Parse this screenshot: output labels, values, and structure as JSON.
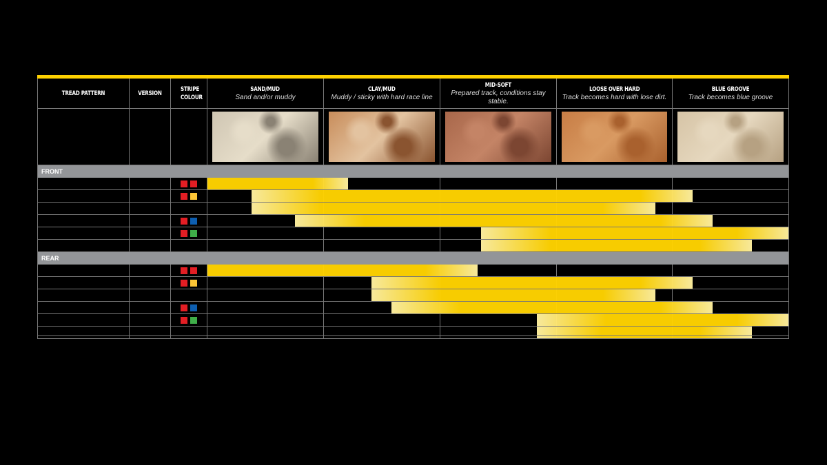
{
  "chart_data": {
    "type": "bar",
    "orientation": "horizontal-range",
    "columns": [
      {
        "label": "TREAD PATTERN"
      },
      {
        "label": "VERSION"
      },
      {
        "label": "STRIPE COLOUR"
      }
    ],
    "terrains": [
      {
        "name": "SAND/MUD",
        "desc": "Sand and/or muddy",
        "texture": [
          "#cfc6b3",
          "#8a8274",
          "#e6ddc9"
        ]
      },
      {
        "name": "CLAY/MUD",
        "desc": "Muddy / sticky with hard race line",
        "texture": [
          "#c88d5b",
          "#8a5430",
          "#e3c3a0"
        ]
      },
      {
        "name": "MID-SOFT",
        "desc": "Prepared track, conditions stay stable.",
        "texture": [
          "#a8674a",
          "#7c4632",
          "#c48466"
        ]
      },
      {
        "name": "LOOSE OVER HARD",
        "desc": "Track becomes hard with lose dirt.",
        "texture": [
          "#c77d45",
          "#a9612e",
          "#d99a62"
        ]
      },
      {
        "name": "BLUE GROOVE",
        "desc": "Track becomes blue groove",
        "texture": [
          "#d6c4a6",
          "#b6a182",
          "#e6d8bf"
        ]
      }
    ],
    "x_range": [
      0,
      5
    ],
    "bar_color": "#ffd200",
    "fade_color": "#fff0a0",
    "groups": [
      {
        "label": "FRONT",
        "rows": [
          {
            "stripes": [
              "#e31e24",
              "#e31e24"
            ],
            "start": 0,
            "end": 1.21,
            "fade_in": false,
            "fade_out": true
          },
          {
            "stripes": [
              "#e31e24",
              "#fcc536"
            ],
            "start": 0.38,
            "end": 4.17,
            "fade_in": true,
            "fade_out": true
          },
          {
            "stripes": [],
            "start": 0.38,
            "end": 3.85,
            "fade_in": true,
            "fade_out": true
          },
          {
            "stripes": [
              "#e31e24",
              "#0d5eb0"
            ],
            "start": 0.75,
            "end": 4.34,
            "fade_in": true,
            "fade_out": true
          },
          {
            "stripes": [
              "#e31e24",
              "#3fae49"
            ],
            "start": 2.35,
            "end": 5.0,
            "fade_in": true,
            "fade_out": true
          },
          {
            "stripes": [],
            "start": 2.35,
            "end": 4.68,
            "fade_in": true,
            "fade_out": true
          }
        ]
      },
      {
        "label": "REAR",
        "rows": [
          {
            "stripes": [
              "#e31e24",
              "#e31e24"
            ],
            "start": 0,
            "end": 2.32,
            "fade_in": false,
            "fade_out": true
          },
          {
            "stripes": [
              "#e31e24",
              "#fcc536"
            ],
            "start": 1.41,
            "end": 4.17,
            "fade_in": true,
            "fade_out": true
          },
          {
            "stripes": [],
            "start": 1.41,
            "end": 3.85,
            "fade_in": true,
            "fade_out": true
          },
          {
            "stripes": [
              "#e31e24",
              "#0d5eb0"
            ],
            "start": 1.58,
            "end": 4.34,
            "fade_in": true,
            "fade_out": true
          },
          {
            "stripes": [
              "#e31e24",
              "#3fae49"
            ],
            "start": 2.83,
            "end": 5.0,
            "fade_in": true,
            "fade_out": true
          },
          {
            "stripes": [],
            "start": 2.83,
            "end": 4.68,
            "fade_in": true,
            "fade_out": true
          }
        ]
      }
    ]
  }
}
